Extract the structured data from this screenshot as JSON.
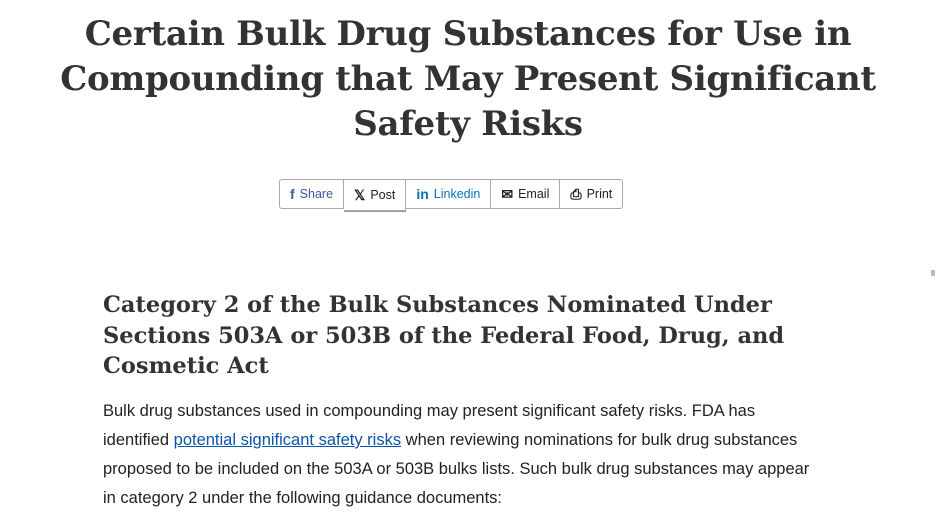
{
  "page": {
    "title": "Certain Bulk Drug Substances for Use in Compounding that May Present Significant Safety Risks"
  },
  "share": {
    "facebook": "Share",
    "x": "Post",
    "linkedin": "Linkedin",
    "email": "Email",
    "print": "Print"
  },
  "section": {
    "heading": "Category 2 of the Bulk Substances Nominated Under Sections 503A or 503B of the Federal Food, Drug, and Cosmetic Act",
    "para_before": "Bulk drug substances used in compounding may present significant safety risks. FDA has identified ",
    "link": "potential significant safety risks",
    "para_after": " when reviewing nominations for bulk drug substances proposed to be included on the 503A or 503B bulks lists. Such bulk drug substances may appear in category 2 under the following guidance documents:"
  },
  "colors": {
    "facebook": "#3b5998",
    "linkedin": "#0a73b5",
    "link": "#0a55a8"
  }
}
